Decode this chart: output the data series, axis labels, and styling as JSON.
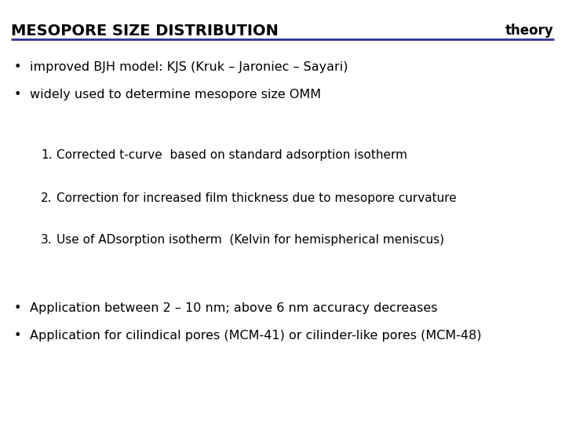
{
  "title": "MESOPORE SIZE DISTRIBUTION",
  "title_right": "theory",
  "bg_color": "#ffffff",
  "title_color": "#000000",
  "line_color": "#2e3192",
  "bullets_top": [
    "improved BJH model: KJS (Kruk – Jaroniec – Sayari)",
    "widely used to determine mesopore size OMM"
  ],
  "numbered_items": [
    "Corrected t-curve  based on standard adsorption isotherm",
    "Correction for increased film thickness due to mesopore curvature",
    "Use of ADsorption isotherm  (Kelvin for hemispherical meniscus)"
  ],
  "bullets_bottom": [
    "Application between 2 – 10 nm; above 6 nm accuracy decreases",
    "Application for cilindical pores (MCM-41) or cilinder-like pores (MCM-48)"
  ],
  "title_fontsize": 14,
  "theory_fontsize": 12,
  "bullet_fontsize": 11.5,
  "numbered_fontsize": 11,
  "title_font_weight": "bold",
  "theory_font_weight": "bold",
  "figwidth": 7.2,
  "figheight": 5.4,
  "dpi": 100
}
